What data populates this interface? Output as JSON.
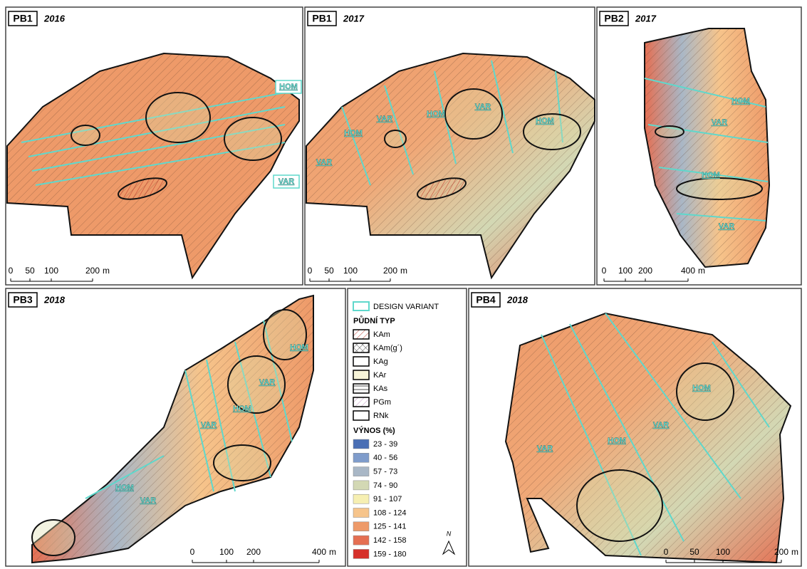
{
  "panels": [
    {
      "id": "PB1",
      "year": "2016",
      "field_labels": [
        "HOM",
        "VAR"
      ],
      "scale_labels": [
        "0",
        "50",
        "100",
        "200"
      ],
      "scale_unit": "m"
    },
    {
      "id": "PB1",
      "year": "2017",
      "field_labels": [
        "VAR",
        "HOM",
        "VAR",
        "HOM",
        "VAR",
        "HOM"
      ],
      "scale_labels": [
        "0",
        "50",
        "100",
        "200"
      ],
      "scale_unit": "m"
    },
    {
      "id": "PB2",
      "year": "2017",
      "field_labels": [
        "HOM",
        "VAR",
        "HOM",
        "VAR"
      ],
      "scale_labels": [
        "0",
        "100",
        "200",
        "400"
      ],
      "scale_unit": "m"
    },
    {
      "id": "PB3",
      "year": "2018",
      "field_labels": [
        "HOM",
        "VAR",
        "HOM",
        "VAR",
        "HOM",
        "VAR"
      ],
      "scale_labels": [
        "0",
        "100",
        "200",
        "400"
      ],
      "scale_unit": "m"
    },
    {
      "id": "PB4",
      "year": "2018",
      "field_labels": [
        "HOM",
        "VAR",
        "HOM",
        "VAR"
      ],
      "scale_labels": [
        "0",
        "50",
        "100",
        "200"
      ],
      "scale_unit": "m"
    }
  ],
  "legend": {
    "design_variant": "DESIGN VARIANT",
    "soil_title": "PŮDNÍ TYP",
    "soil_types": [
      "KAm",
      "KAm(g´)",
      "KAg",
      "KAr",
      "KAs",
      "PGm",
      "RNk"
    ],
    "yield_title": "VÝNOS (%)",
    "yield_classes": [
      {
        "label": "23 - 39",
        "color": "#4a6fb5"
      },
      {
        "label": "40 - 56",
        "color": "#7f9ccb"
      },
      {
        "label": "57 - 73",
        "color": "#a9b7c6"
      },
      {
        "label": "74 - 90",
        "color": "#d3d8b4"
      },
      {
        "label": "91 - 107",
        "color": "#f6efb2"
      },
      {
        "label": "108 - 124",
        "color": "#f6c48b"
      },
      {
        "label": "125 - 141",
        "color": "#ee9a69"
      },
      {
        "label": "142 - 158",
        "color": "#e56f52"
      },
      {
        "label": "159 - 180",
        "color": "#d6302a"
      }
    ]
  },
  "north": "N"
}
